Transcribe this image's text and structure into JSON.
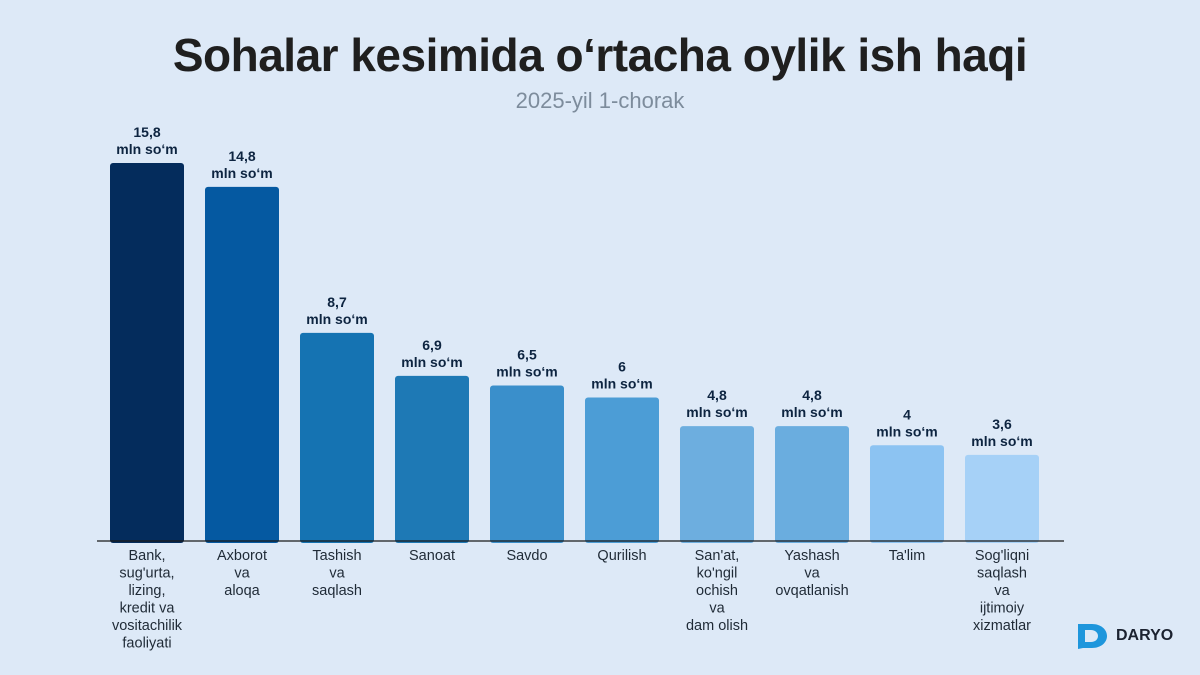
{
  "chart_data": {
    "type": "bar",
    "title": "Sohalar kesimida o‘rtacha oylik ish haqi",
    "subtitle": "2025-yil 1-chorak",
    "unit": "mln so‘m",
    "categories": [
      "Bank, sug'urta, lizing, kredit va vositachilik faoliyati",
      "Axborot va aloqa",
      "Tashish va saqlash",
      "Sanoat",
      "Savdo",
      "Qurilish",
      "San'at, ko'ngil ochish va dam olish",
      "Yashash va ovqatlanish",
      "Ta'lim",
      "Sog'liqni saqlash va ijtimoiy xizmatlar"
    ],
    "category_lines": [
      [
        "Bank,",
        "sug'urta,",
        "lizing,",
        "kredit va",
        "vositachilik",
        "faoliyati"
      ],
      [
        "Axborot",
        "va",
        "aloqa"
      ],
      [
        "Tashish",
        "va",
        "saqlash"
      ],
      [
        "Sanoat"
      ],
      [
        "Savdo"
      ],
      [
        "Qurilish"
      ],
      [
        "San'at,",
        "ko'ngil",
        "ochish",
        "va",
        "dam olish"
      ],
      [
        "Yashash",
        "va",
        "ovqatlanish"
      ],
      [
        "Ta'lim"
      ],
      [
        "Sog'liqni",
        "saqlash",
        "va",
        "ijtimoiy",
        "xizmatlar"
      ]
    ],
    "values": [
      15.8,
      14.8,
      8.7,
      6.9,
      6.5,
      6,
      4.8,
      4.8,
      4,
      3.6
    ],
    "value_labels": [
      "15,8",
      "14,8",
      "8,7",
      "6,9",
      "6,5",
      "6",
      "4,8",
      "4,8",
      "4",
      "3,6"
    ],
    "colors": [
      "#042c5c",
      "#0559a1",
      "#1573b2",
      "#1e79b5",
      "#3a8fcb",
      "#4c9dd6",
      "#6daedf",
      "#6aaddf",
      "#8cc3f2",
      "#a6d1f7"
    ],
    "ylim": [
      0,
      15.8
    ],
    "grid": false,
    "legend": "none"
  },
  "logo": {
    "text": "DARYO",
    "color": "#1e96dc"
  }
}
